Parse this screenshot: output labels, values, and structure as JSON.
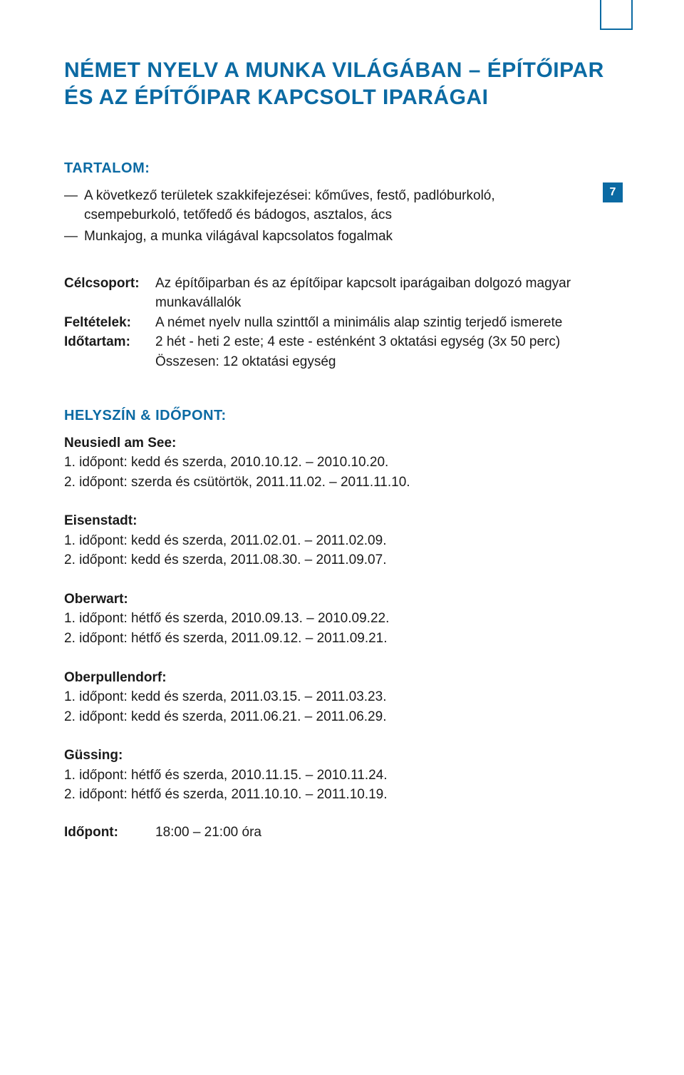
{
  "page_number": "7",
  "title": "NÉMET NYELV A MUNKA VILÁGÁBAN – ÉPÍTŐIPAR ÉS AZ ÉPÍTŐIPAR KAPCSOLT IPARÁGAI",
  "tartalom_label": "TARTALOM:",
  "tartalom_items": [
    "A következő területek szakkifejezései: kőműves, festő, padlóburkoló, csempeburkoló, tetőfedő és bádogos, asztalos, ács",
    "Munkajog, a munka világával kapcsolatos fogalmak"
  ],
  "info": {
    "celcsoport": {
      "key": "Célcsoport:",
      "val": "Az építőiparban és az építőipar kapcsolt iparágaiban dolgozó magyar munkavállalók"
    },
    "feltetelek": {
      "key": "Feltételek:",
      "val": "A német nyelv nulla szinttől a minimális alap szintig terjedő ismerete"
    },
    "idotartam": {
      "key": "Időtartam:",
      "val1": "2 hét - heti 2 este; 4 este - esténként 3 oktatási egység (3x 50 perc)",
      "val2": "Összesen: 12 oktatási egység"
    }
  },
  "helyszin_label": "HELYSZÍN & IDŐPONT:",
  "locations": [
    {
      "name": "Neusiedl am See:",
      "lines": [
        "1. időpont: kedd és szerda, 2010.10.12. – 2010.10.20.",
        "2. időpont: szerda és csütörtök, 2011.11.02. – 2011.11.10."
      ]
    },
    {
      "name": "Eisenstadt:",
      "lines": [
        "1. időpont: kedd és szerda, 2011.02.01. – 2011.02.09.",
        "2. időpont: kedd és szerda, 2011.08.30. – 2011.09.07."
      ]
    },
    {
      "name": "Oberwart:",
      "lines": [
        "1. időpont: hétfő és szerda, 2010.09.13. – 2010.09.22.",
        "2. időpont: hétfő és szerda, 2011.09.12. – 2011.09.21."
      ]
    },
    {
      "name": "Oberpullendorf:",
      "lines": [
        "1. időpont: kedd és szerda, 2011.03.15. – 2011.03.23.",
        "2. időpont: kedd és szerda, 2011.06.21. – 2011.06.29."
      ]
    },
    {
      "name": "Güssing:",
      "lines": [
        "1. időpont: hétfő és szerda, 2010.11.15. – 2010.11.24.",
        "2. időpont: hétfő és szerda, 2011.10.10. – 2011.10.19."
      ]
    }
  ],
  "time": {
    "key": "Időpont:",
    "val": "18:00 – 21:00 óra"
  }
}
